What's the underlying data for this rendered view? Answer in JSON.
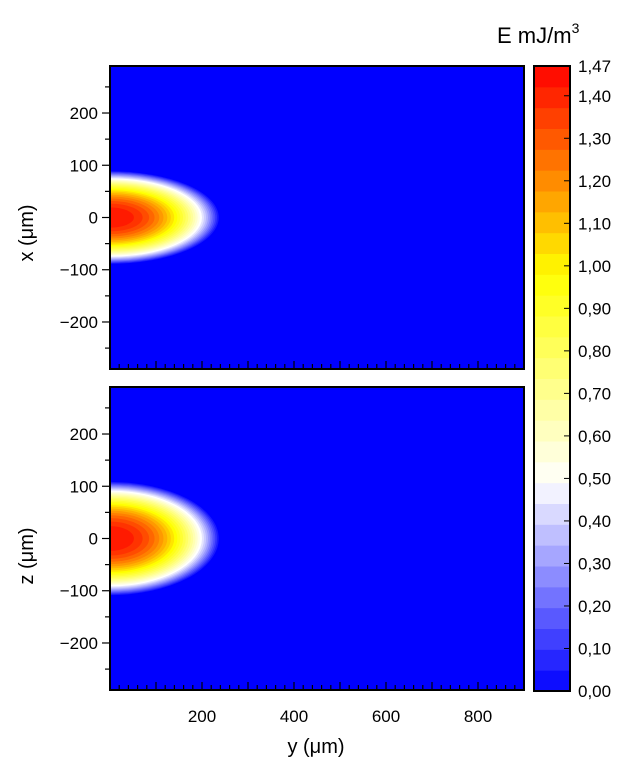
{
  "chart_data": [
    {
      "type": "heatmap",
      "panel": "top",
      "ylabel": "x (μm)",
      "ylim": [
        -290,
        290
      ],
      "xlim": [
        0,
        900
      ],
      "yticks": [
        200,
        100,
        0,
        -100,
        -200
      ],
      "ytick_labels": [
        "200",
        "100",
        "0",
        "−100",
        "−200"
      ],
      "source": {
        "center": [
          0,
          0
        ],
        "peak": 1.47,
        "extent_y": 240,
        "extent_transverse": 90
      },
      "background_value": 0.0
    },
    {
      "type": "heatmap",
      "panel": "bottom",
      "ylabel": "z (μm)",
      "xlabel": "y (μm)",
      "ylim": [
        -290,
        290
      ],
      "xlim": [
        0,
        900
      ],
      "yticks": [
        200,
        100,
        0,
        -100,
        -200
      ],
      "ytick_labels": [
        "200",
        "100",
        "0",
        "−100",
        "−200"
      ],
      "xticks": [
        200,
        400,
        600,
        800
      ],
      "xtick_labels": [
        "200",
        "400",
        "600",
        "800"
      ],
      "source": {
        "center": [
          0,
          0
        ],
        "peak": 1.47,
        "extent_y": 240,
        "extent_transverse": 110
      },
      "background_value": 0.0
    }
  ],
  "colorbar": {
    "title_base": "E mJ/m",
    "title_sup": "3",
    "min": 0.0,
    "max": 1.47,
    "tick_values": [
      1.47,
      1.4,
      1.3,
      1.2,
      1.1,
      1.0,
      0.9,
      0.8,
      0.7,
      0.6,
      0.5,
      0.4,
      0.3,
      0.2,
      0.1,
      0.0
    ],
    "tick_labels": [
      "1,47",
      "1,40",
      "1,30",
      "1,20",
      "1,10",
      "1,00",
      "0,90",
      "0,80",
      "0,70",
      "0,60",
      "0,50",
      "0,40",
      "0,30",
      "0,20",
      "0,10",
      "0,00"
    ],
    "color_stops": [
      "#0000ff",
      "#ffffff",
      "#ffff00",
      "#ff0000"
    ]
  }
}
